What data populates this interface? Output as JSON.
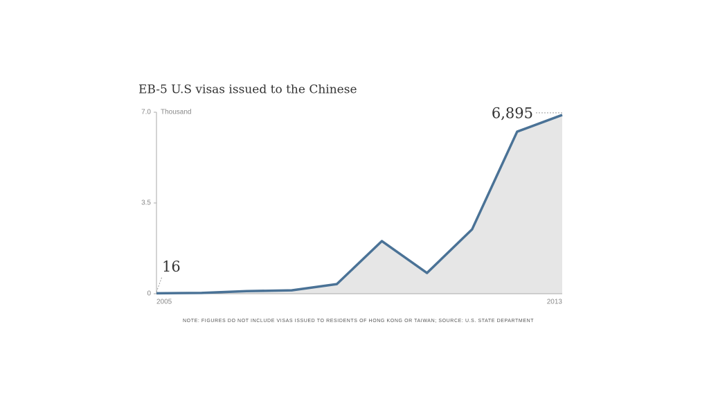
{
  "chart_data": {
    "type": "area",
    "title": "EB-5 U.S visas issued to the Chinese",
    "y_label": "Thousand",
    "note": "NOTE: FIGURES DO NOT INCLUDE VISAS ISSUED TO RESIDENTS OF HONG KONG OR TAIWAN; SOURCE: U.S. STATE DEPARTMENT",
    "categories": [
      "2005",
      null,
      null,
      null,
      null,
      null,
      null,
      null,
      null,
      "2013"
    ],
    "values": [
      0.016,
      0.03,
      0.1,
      0.13,
      0.37,
      2.03,
      0.8,
      2.48,
      6.25,
      6.895
    ],
    "value_labels": [
      "16",
      null,
      null,
      null,
      null,
      null,
      null,
      null,
      null,
      "6,895"
    ],
    "color": "#4a7296",
    "fill": "#e6e6e6",
    "ylim": [
      0,
      7
    ],
    "yticks": [
      0,
      3.5,
      {
        "value": 7,
        "label": "7.0"
      }
    ]
  }
}
